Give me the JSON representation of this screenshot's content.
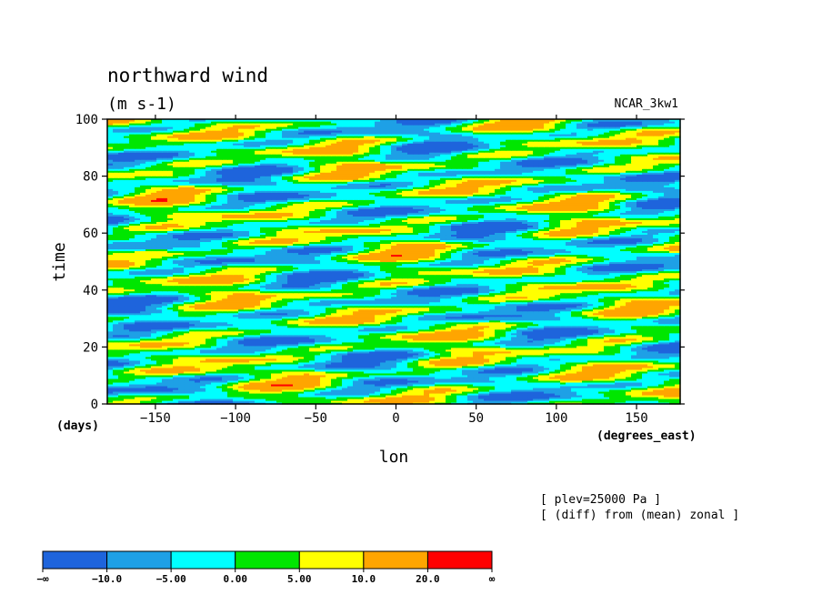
{
  "chart_data": {
    "type": "heatmap",
    "title": "northward wind",
    "subtitle": "(m s-1)",
    "source_label": "NCAR_3kw1",
    "xlabel": "lon",
    "xunits": "(degrees_east)",
    "ylabel": "time",
    "yunits": "(days)",
    "xlim": [
      -180,
      177.1875
    ],
    "ylim": [
      0,
      100
    ],
    "x_ticks": [
      -150,
      -100,
      -50,
      0,
      50,
      100,
      150
    ],
    "x_tick_labels": [
      "−150",
      "−100",
      "−50",
      "0",
      "50",
      "100",
      "150"
    ],
    "y_ticks": [
      0,
      20,
      40,
      60,
      80,
      100
    ],
    "y_tick_labels": [
      "0",
      "20",
      "40",
      "60",
      "80",
      "100"
    ],
    "annotations": [
      "[ plev=25000 Pa ]",
      "[ (diff) from (mean) zonal ]"
    ],
    "colorbar": {
      "colors": [
        "#1e64dc",
        "#1ea0e6",
        "#00ffff",
        "#00e600",
        "#ffff00",
        "#ffa500",
        "#ff0000"
      ],
      "labels": [
        "−∞",
        "−10.0",
        "−5.00",
        "0.00",
        "5.00",
        "10.0",
        "20.0",
        "∞"
      ]
    }
  }
}
